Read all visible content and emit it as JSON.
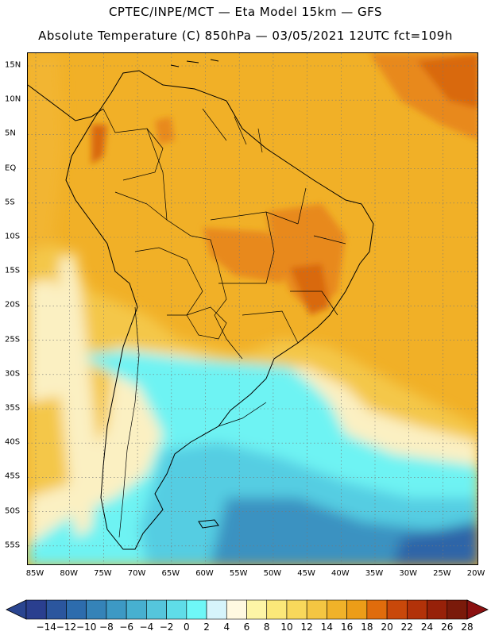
{
  "title_line1": "CPTEC/INPE/MCT —  Eta Model 15km — GFS",
  "title_line2": "Absolute Temperature (C) 850hPa — 03/05/2021 12UTC fct=109h",
  "lat_labels": [
    "15N",
    "10N",
    "5N",
    "EQ",
    "5S",
    "10S",
    "15S",
    "20S",
    "25S",
    "30S",
    "35S",
    "40S",
    "45S",
    "50S",
    "55S"
  ],
  "lon_labels": [
    "85W",
    "80W",
    "75W",
    "70W",
    "65W",
    "60W",
    "55W",
    "50W",
    "45W",
    "40W",
    "35W",
    "30W",
    "25W",
    "20W"
  ],
  "colorbar": {
    "labels": [
      "-14",
      "-12",
      "-10",
      "-8",
      "-6",
      "-4",
      "-2",
      "0",
      "2",
      "4",
      "6",
      "8",
      "10",
      "12",
      "14",
      "16",
      "18",
      "20",
      "22",
      "24",
      "26",
      "28"
    ],
    "colors": [
      "#2a3f8f",
      "#2b569e",
      "#2d6cad",
      "#3583b8",
      "#3d99c4",
      "#47b0d0",
      "#55c6dc",
      "#5fdde8",
      "#6ef7f7",
      "#d6f4fb",
      "#fff9e1",
      "#fdf5a6",
      "#fbe879",
      "#f8d85b",
      "#f4c642",
      "#f0b229",
      "#ec9d18",
      "#e06c0c",
      "#c9480a",
      "#b23209",
      "#972109",
      "#7a1a0a"
    ],
    "min_color": "#2a4590",
    "max_color": "#8b1010"
  },
  "map": {
    "ocean_colors": {
      "warm": "#f1b027",
      "mid": "#f4c748",
      "cool": "#fbf0c2",
      "cold": "#6ef3f3",
      "colder": "#55cde2",
      "coldest": "#3b92c1",
      "deep": "#2d65a8"
    },
    "hot_colors": {
      "hot": "#e8891e",
      "hotter": "#d9690f"
    }
  }
}
